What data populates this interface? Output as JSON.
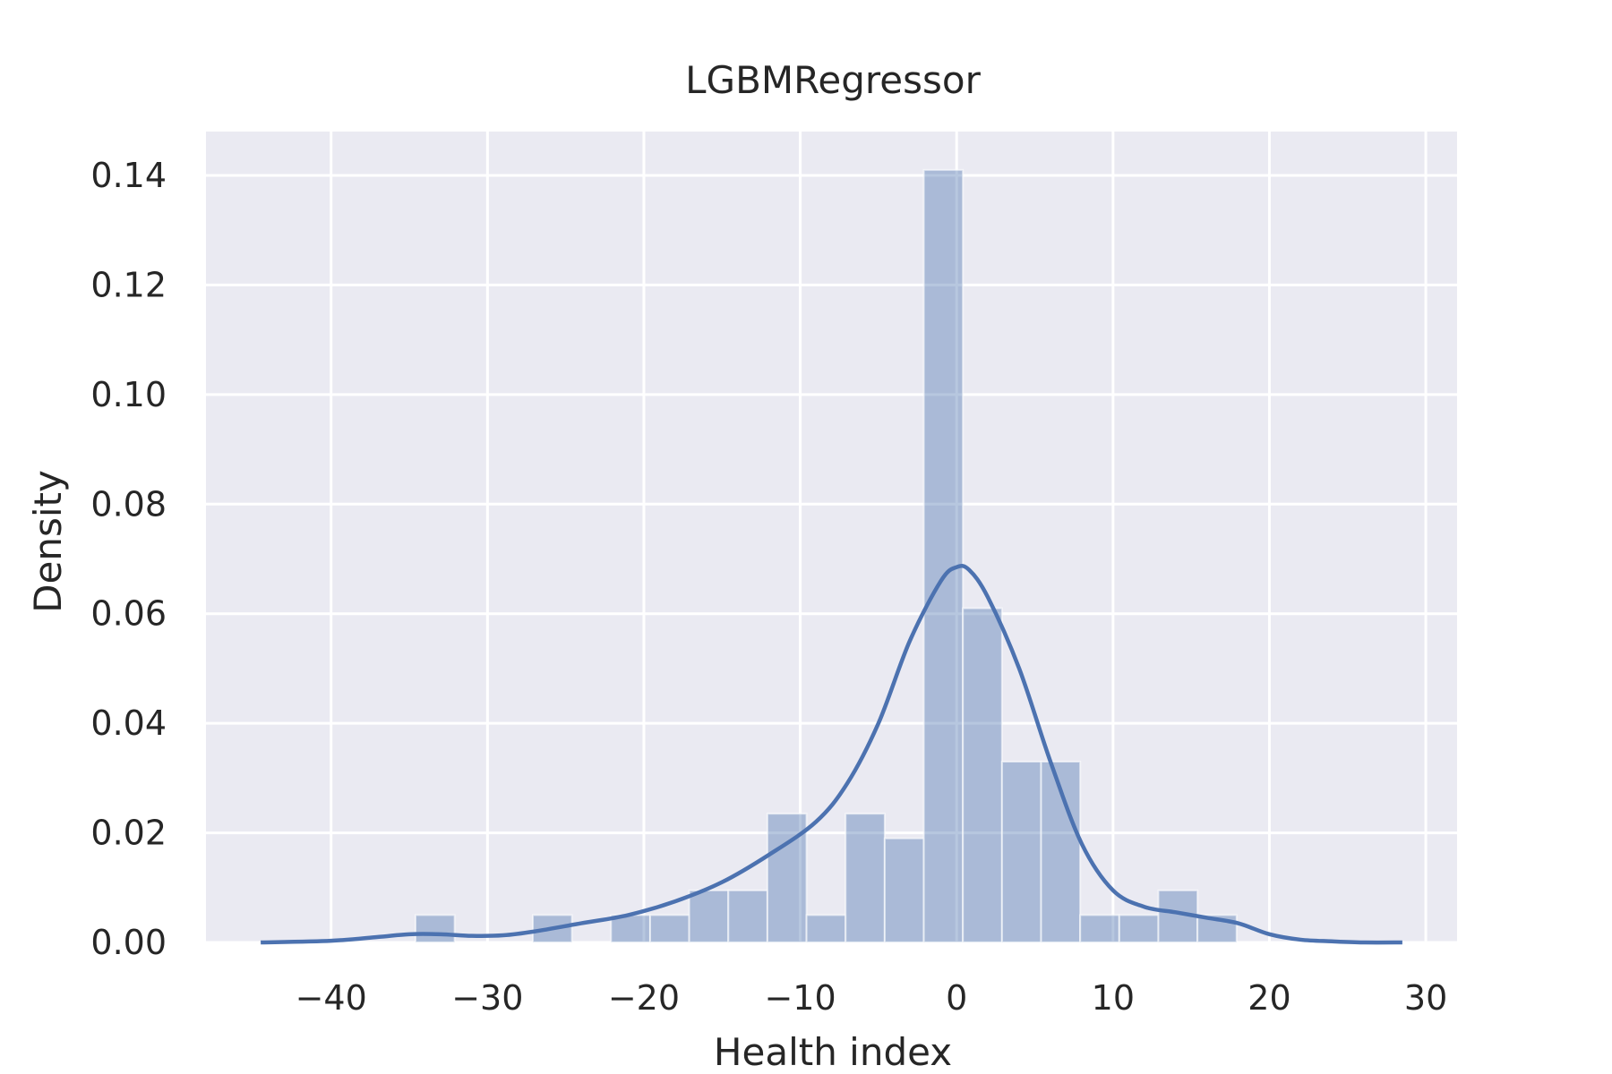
{
  "chart_data": {
    "type": "bar",
    "title": "LGBMRegressor",
    "xlabel": "Health index",
    "ylabel": "Density",
    "xlim": [
      -48,
      32
    ],
    "ylim": [
      0,
      0.148
    ],
    "x_ticks": [
      -40,
      -30,
      -20,
      -10,
      0,
      10,
      20,
      30
    ],
    "x_tick_labels": [
      "−40",
      "−30",
      "−20",
      "−10",
      "0",
      "10",
      "20",
      "30"
    ],
    "y_ticks": [
      0.0,
      0.02,
      0.04,
      0.06,
      0.08,
      0.1,
      0.12,
      0.14
    ],
    "y_tick_labels": [
      "0.00",
      "0.02",
      "0.04",
      "0.06",
      "0.08",
      "0.10",
      "0.12",
      "0.14"
    ],
    "grid": true,
    "histogram": {
      "bin_width": 2.5,
      "bins": [
        {
          "start": -34.6,
          "density": 0.005
        },
        {
          "start": -27.1,
          "density": 0.005
        },
        {
          "start": -22.1,
          "density": 0.005
        },
        {
          "start": -19.6,
          "density": 0.005
        },
        {
          "start": -17.1,
          "density": 0.0095
        },
        {
          "start": -14.6,
          "density": 0.0095
        },
        {
          "start": -12.1,
          "density": 0.0235
        },
        {
          "start": -9.6,
          "density": 0.005
        },
        {
          "start": -7.1,
          "density": 0.0235
        },
        {
          "start": -4.6,
          "density": 0.019
        },
        {
          "start": -2.1,
          "density": 0.141
        },
        {
          "start": 0.4,
          "density": 0.061
        },
        {
          "start": 2.9,
          "density": 0.033
        },
        {
          "start": 5.4,
          "density": 0.033
        },
        {
          "start": 7.9,
          "density": 0.005
        },
        {
          "start": 10.4,
          "density": 0.005
        },
        {
          "start": 12.9,
          "density": 0.0095
        },
        {
          "start": 15.4,
          "density": 0.005
        }
      ]
    },
    "kde": {
      "x": [
        -44.5,
        -40,
        -37,
        -35,
        -33,
        -31,
        -29,
        -27,
        -24,
        -21,
        -18,
        -15,
        -12,
        -9,
        -7,
        -5,
        -3,
        -1,
        0,
        0.8,
        2,
        4,
        6,
        8,
        10,
        12,
        14,
        16,
        18,
        20,
        22,
        24,
        26,
        28.5
      ],
      "y": [
        0.0,
        0.0003,
        0.001,
        0.0015,
        0.0015,
        0.0012,
        0.0013,
        0.002,
        0.0035,
        0.005,
        0.0075,
        0.011,
        0.016,
        0.022,
        0.029,
        0.04,
        0.055,
        0.066,
        0.0685,
        0.068,
        0.063,
        0.05,
        0.033,
        0.018,
        0.0095,
        0.0065,
        0.0055,
        0.0045,
        0.0035,
        0.0015,
        0.0005,
        0.0002,
        0.0,
        0.0
      ]
    },
    "colors": {
      "background": "#eaeaf2",
      "grid": "#ffffff",
      "bar_fill": "#4c72b0",
      "bar_alpha": 0.4,
      "kde_line": "#4c72b0",
      "text": "#262626"
    }
  }
}
